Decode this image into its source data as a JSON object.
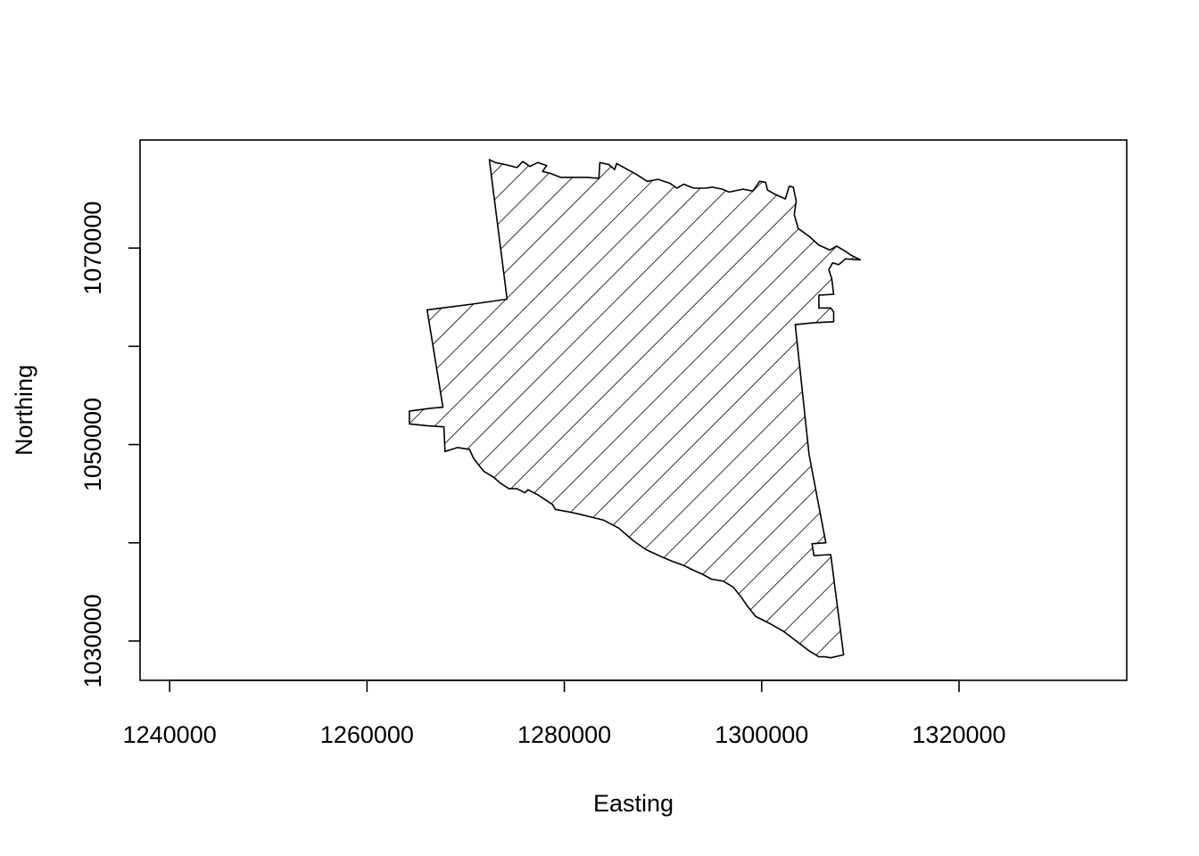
{
  "chart_data": {
    "type": "map",
    "xlabel": "Easting",
    "ylabel": "Northing",
    "xlim": [
      1237000,
      1337000
    ],
    "ylim": [
      1026000,
      1081000
    ],
    "x_ticks": [
      1240000,
      1260000,
      1280000,
      1300000,
      1320000
    ],
    "y_ticks": [
      1030000,
      1040000,
      1050000,
      1060000,
      1070000
    ],
    "y_tick_labels": [
      1030000,
      1050000,
      1070000
    ],
    "grid": false,
    "legend": "none",
    "fill_pattern": "diagonal-hatch",
    "outline_color": "#000000",
    "polygon": [
      [
        1272400,
        1079000
      ],
      [
        1273000,
        1078700
      ],
      [
        1274000,
        1078500
      ],
      [
        1275200,
        1078200
      ],
      [
        1275800,
        1078800
      ],
      [
        1276500,
        1078300
      ],
      [
        1277300,
        1078700
      ],
      [
        1278200,
        1078400
      ],
      [
        1277800,
        1077800
      ],
      [
        1278600,
        1077600
      ],
      [
        1279600,
        1077200
      ],
      [
        1280700,
        1077200
      ],
      [
        1282300,
        1077200
      ],
      [
        1283500,
        1077100
      ],
      [
        1283600,
        1078700
      ],
      [
        1284500,
        1078500
      ],
      [
        1285100,
        1078000
      ],
      [
        1285300,
        1078600
      ],
      [
        1286400,
        1078000
      ],
      [
        1287300,
        1077500
      ],
      [
        1288400,
        1076800
      ],
      [
        1289500,
        1077000
      ],
      [
        1290700,
        1076600
      ],
      [
        1291400,
        1076100
      ],
      [
        1292100,
        1076500
      ],
      [
        1293100,
        1076100
      ],
      [
        1294300,
        1076100
      ],
      [
        1295000,
        1076200
      ],
      [
        1296000,
        1076000
      ],
      [
        1296700,
        1075700
      ],
      [
        1298100,
        1076000
      ],
      [
        1299100,
        1075800
      ],
      [
        1299800,
        1076800
      ],
      [
        1300400,
        1076700
      ],
      [
        1300600,
        1075900
      ],
      [
        1301300,
        1075500
      ],
      [
        1302400,
        1075000
      ],
      [
        1302800,
        1076300
      ],
      [
        1303200,
        1076200
      ],
      [
        1303500,
        1074800
      ],
      [
        1303300,
        1073400
      ],
      [
        1303700,
        1072000
      ],
      [
        1304800,
        1071200
      ],
      [
        1305800,
        1070300
      ],
      [
        1306900,
        1069800
      ],
      [
        1307600,
        1070200
      ],
      [
        1308600,
        1069600
      ],
      [
        1309000,
        1069300
      ],
      [
        1310000,
        1068800
      ],
      [
        1308500,
        1068900
      ],
      [
        1307800,
        1068300
      ],
      [
        1307200,
        1068500
      ],
      [
        1306800,
        1067800
      ],
      [
        1307100,
        1066900
      ],
      [
        1307300,
        1065300
      ],
      [
        1305800,
        1065200
      ],
      [
        1305800,
        1063900
      ],
      [
        1307000,
        1063900
      ],
      [
        1307300,
        1063500
      ],
      [
        1307300,
        1062500
      ],
      [
        1305300,
        1062400
      ],
      [
        1303400,
        1062200
      ],
      [
        1304800,
        1049000
      ],
      [
        1306500,
        1040000
      ],
      [
        1305100,
        1039900
      ],
      [
        1305300,
        1038700
      ],
      [
        1307000,
        1038800
      ],
      [
        1308300,
        1028600
      ],
      [
        1307000,
        1028300
      ],
      [
        1306400,
        1028400
      ],
      [
        1305800,
        1028400
      ],
      [
        1304800,
        1029000
      ],
      [
        1303500,
        1030000
      ],
      [
        1302200,
        1031000
      ],
      [
        1300800,
        1031800
      ],
      [
        1299400,
        1032500
      ],
      [
        1298600,
        1033500
      ],
      [
        1297900,
        1034500
      ],
      [
        1297100,
        1035500
      ],
      [
        1296100,
        1036100
      ],
      [
        1294900,
        1036300
      ],
      [
        1294000,
        1036800
      ],
      [
        1293100,
        1037200
      ],
      [
        1292100,
        1037700
      ],
      [
        1291000,
        1038100
      ],
      [
        1289800,
        1038600
      ],
      [
        1288300,
        1039300
      ],
      [
        1287000,
        1040200
      ],
      [
        1285500,
        1041500
      ],
      [
        1284000,
        1042300
      ],
      [
        1282800,
        1042600
      ],
      [
        1281600,
        1042900
      ],
      [
        1280700,
        1043100
      ],
      [
        1279100,
        1043400
      ],
      [
        1278800,
        1043900
      ],
      [
        1277300,
        1044900
      ],
      [
        1276300,
        1045400
      ],
      [
        1276000,
        1045100
      ],
      [
        1275200,
        1045500
      ],
      [
        1274400,
        1045500
      ],
      [
        1273600,
        1046000
      ],
      [
        1272800,
        1046700
      ],
      [
        1271800,
        1047300
      ],
      [
        1270800,
        1048600
      ],
      [
        1270400,
        1049500
      ],
      [
        1269200,
        1049700
      ],
      [
        1267900,
        1049300
      ],
      [
        1267800,
        1051800
      ],
      [
        1266200,
        1051900
      ],
      [
        1264300,
        1052100
      ],
      [
        1264300,
        1053400
      ],
      [
        1266500,
        1053700
      ],
      [
        1267700,
        1053800
      ],
      [
        1266100,
        1063700
      ],
      [
        1270700,
        1064300
      ],
      [
        1274200,
        1064800
      ],
      [
        1272400,
        1079000
      ]
    ]
  }
}
